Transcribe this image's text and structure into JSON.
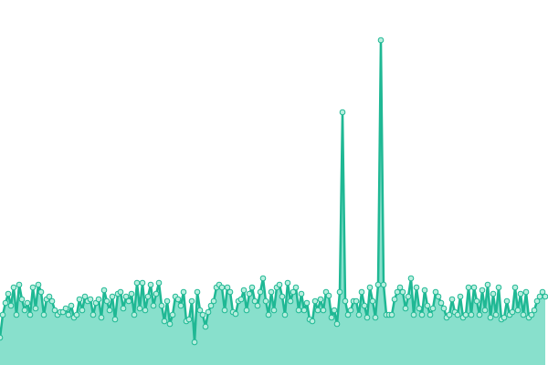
{
  "chart_data": {
    "type": "area",
    "color": "#1fb894",
    "fill": "#88e0cc",
    "ylim": [
      0,
      400
    ],
    "values": [
      30,
      55,
      68,
      78,
      65,
      85,
      55,
      88,
      72,
      60,
      68,
      55,
      85,
      62,
      88,
      80,
      55,
      72,
      75,
      70,
      60,
      55,
      58,
      58,
      62,
      55,
      65,
      52,
      55,
      72,
      60,
      75,
      70,
      72,
      55,
      68,
      72,
      52,
      82,
      70,
      60,
      75,
      50,
      78,
      80,
      62,
      75,
      70,
      78,
      55,
      90,
      62,
      90,
      60,
      75,
      88,
      65,
      78,
      90,
      65,
      48,
      70,
      45,
      55,
      75,
      72,
      65,
      80,
      48,
      50,
      70,
      25,
      80,
      60,
      55,
      42,
      58,
      65,
      70,
      85,
      88,
      85,
      60,
      85,
      80,
      58,
      56,
      70,
      72,
      82,
      60,
      78,
      85,
      70,
      65,
      80,
      95,
      70,
      55,
      80,
      60,
      85,
      88,
      75,
      55,
      90,
      70,
      80,
      85,
      60,
      78,
      60,
      68,
      50,
      48,
      70,
      60,
      72,
      60,
      80,
      76,
      52,
      60,
      45,
      80,
      277,
      70,
      55,
      60,
      70,
      70,
      55,
      80,
      65,
      52,
      85,
      70,
      52,
      88,
      356,
      88,
      55,
      55,
      55,
      72,
      80,
      85,
      80,
      62,
      75,
      95,
      55,
      85,
      62,
      55,
      82,
      65,
      55,
      62,
      80,
      75,
      68,
      62,
      52,
      55,
      72,
      58,
      55,
      75,
      52,
      55,
      85,
      55,
      85,
      70,
      55,
      82,
      60,
      88,
      52,
      78,
      55,
      85,
      50,
      52,
      70,
      55,
      58,
      85,
      60,
      78,
      55,
      80,
      52,
      55,
      60,
      70,
      75,
      80,
      75
    ]
  }
}
